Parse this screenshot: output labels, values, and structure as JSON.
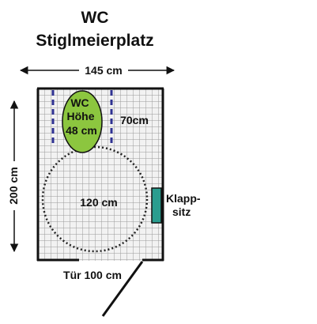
{
  "title": {
    "line1": "WC",
    "line2": "Stiglmeierplatz"
  },
  "dimensions": {
    "width_label": "145 cm",
    "height_label": "200 cm",
    "door_label": "Tür 100 cm"
  },
  "fixtures": {
    "toilet_line1": "WC",
    "toilet_line2": "Höhe",
    "toilet_line3": "48 cm",
    "side_clearance": "70cm",
    "turning_circle": "120 cm",
    "seat_line1": "Klapp-",
    "seat_line2": "sitz"
  },
  "colors": {
    "toilet": "#8cc63f",
    "seat": "#2a9d8f",
    "grid": "#9a9a9a",
    "wall": "#111111",
    "dashed_line": "#2e3192"
  }
}
